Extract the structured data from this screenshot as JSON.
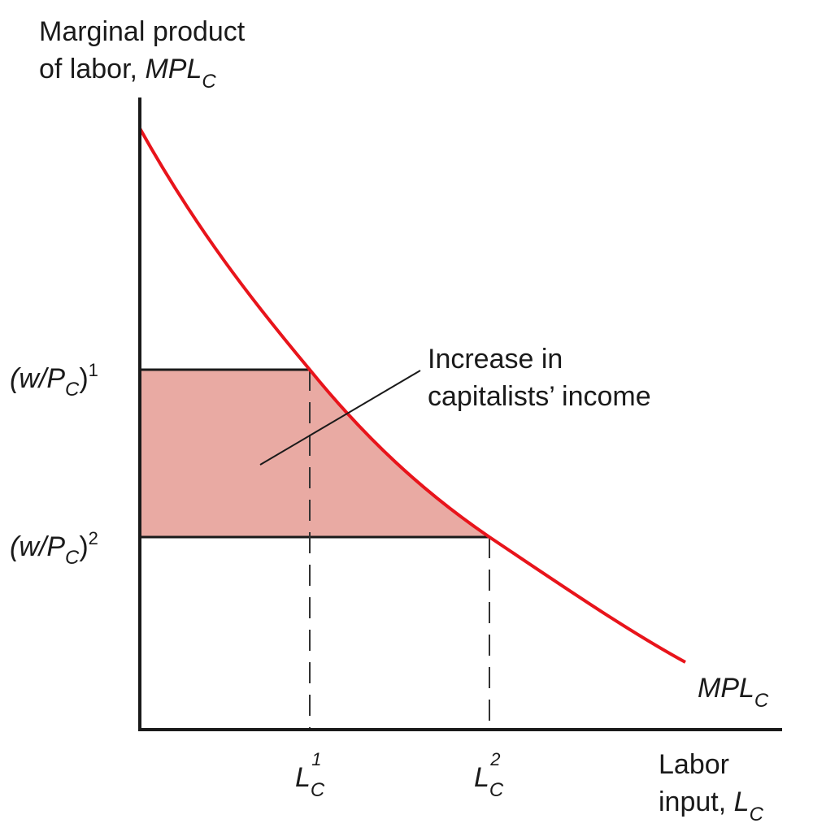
{
  "y_axis": {
    "label_line1": "Marginal product",
    "label_line2": "of labor,",
    "symbol": "MPL",
    "symbol_sub": "C"
  },
  "x_axis": {
    "label_line1": "Labor",
    "label_line2": "input,",
    "symbol": "L",
    "symbol_sub": "C"
  },
  "curve": {
    "name": "MPL",
    "name_sub": "C",
    "color": "#e8141b"
  },
  "shaded_area": {
    "color": "#e9aaa3",
    "annotation_line1": "Increase in",
    "annotation_line2": "capitalists’ income"
  },
  "y_ticks": [
    {
      "open": "(w/P",
      "sub": "C",
      "close": ")",
      "sup": "1"
    },
    {
      "open": "(w/P",
      "sub": "C",
      "close": ")",
      "sup": "2"
    }
  ],
  "x_ticks": [
    {
      "letter": "L",
      "sub": "C",
      "sup": "1"
    },
    {
      "letter": "L",
      "sub": "C",
      "sup": "2"
    }
  ],
  "colors": {
    "axis": "#1a1a1a",
    "curve": "#e8141b",
    "fill": "#e9aaa3",
    "guide": "#333333"
  }
}
